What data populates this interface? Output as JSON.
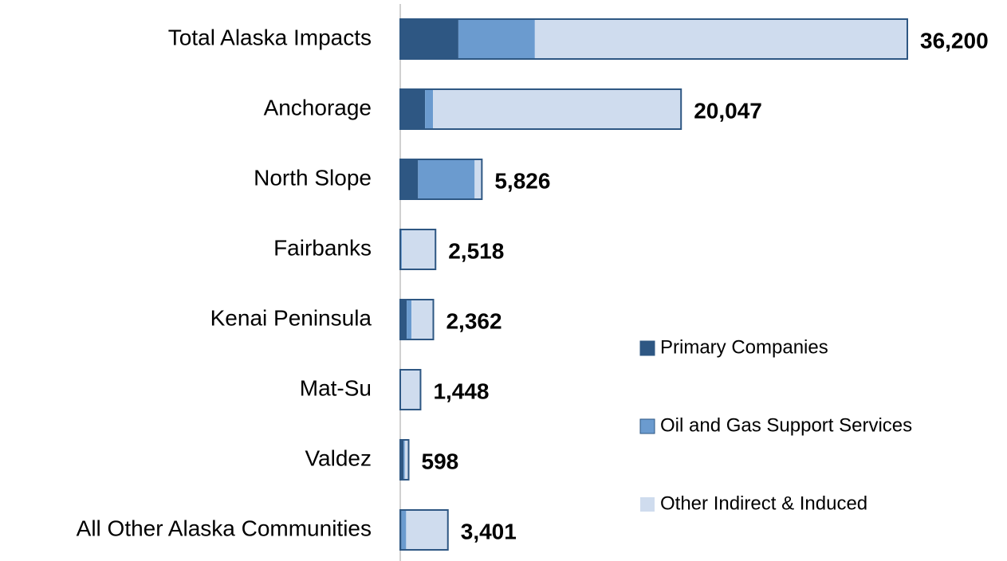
{
  "chart_data": {
    "type": "stacked-barh",
    "categories": [
      "Total Alaska Impacts",
      "Anchorage",
      "North Slope",
      "Fairbanks",
      "Kenai Peninsula",
      "Mat-Su",
      "Valdez",
      "All Other Alaska Communities"
    ],
    "series": [
      {
        "name": "Primary Companies",
        "color": "#2e5783",
        "values": [
          4150,
          1770,
          1270,
          60,
          460,
          30,
          230,
          80
        ]
      },
      {
        "name": "Oil and Gas Support Services",
        "color": "#6b9bcf",
        "values": [
          5460,
          570,
          4040,
          60,
          340,
          30,
          100,
          340
        ]
      },
      {
        "name": "Other Indirect & Induced",
        "color": "#cfdcee",
        "values": [
          26590,
          17707,
          516,
          2398,
          1562,
          1388,
          268,
          2981
        ]
      }
    ],
    "totals": [
      36200,
      20047,
      5826,
      2518,
      2362,
      1448,
      598,
      3401
    ],
    "total_labels": [
      "36,200",
      "20,047",
      "5,826",
      "2,518",
      "2,362",
      "1,448",
      "598",
      "3,401"
    ],
    "legend": "right"
  }
}
